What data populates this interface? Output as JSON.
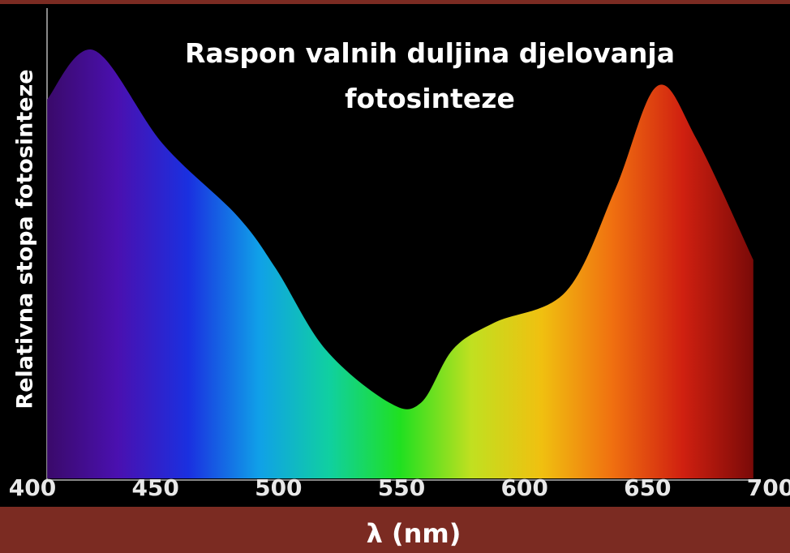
{
  "chart_data": {
    "type": "area",
    "title": "Raspon valnih duljina djelovanja fotosinteze",
    "xlabel": "λ (nm)",
    "ylabel": "Relativna stopa fotosinteze",
    "x": [
      406,
      425,
      453,
      483,
      499,
      519,
      545,
      558,
      571,
      588,
      617,
      637,
      654,
      670,
      693
    ],
    "values": [
      85,
      96,
      75,
      59,
      47,
      29,
      17,
      17,
      29,
      35,
      42,
      65,
      88,
      76,
      49
    ],
    "xlim": [
      400,
      700
    ],
    "ylim": [
      0,
      100
    ],
    "xticks": [
      400,
      450,
      500,
      550,
      600,
      650,
      700
    ],
    "gradient": [
      "#3a0a6a",
      "#4a10b0",
      "#1a30e0",
      "#10a0e8",
      "#10d0a0",
      "#20e020",
      "#c0e020",
      "#f0c010",
      "#f07010",
      "#d02010",
      "#7a0a08"
    ]
  }
}
